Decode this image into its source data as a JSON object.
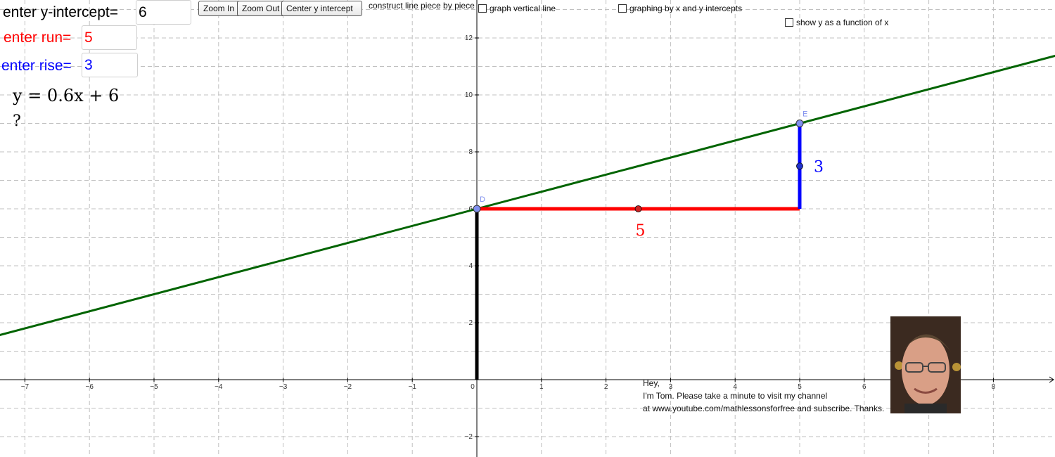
{
  "inputs": {
    "intercept": {
      "label": "enter y-intercept=",
      "value": "6",
      "color": "#000000"
    },
    "run": {
      "label": "enter run=",
      "value": "5",
      "color": "#ff0000"
    },
    "rise": {
      "label": "enter rise=",
      "value": "3",
      "color": "#0000ff"
    }
  },
  "formula": {
    "text": "y = 0.6x + 6",
    "question": "?"
  },
  "buttons": {
    "zoom_in": "Zoom In",
    "zoom_out": "Zoom Out",
    "center": "Center y intercept"
  },
  "checkboxes": {
    "piece": "construct line piece by piece",
    "vertical": "graph vertical line",
    "intercepts": "graphing by x and y intercepts",
    "function": "show y as a function of x"
  },
  "message": {
    "line1": "Hey,",
    "line2": "I'm Tom. Please take a minute to visit my channel",
    "line3": "at www.youtube.com/mathlessonsforfree and subscribe. Thanks."
  },
  "graph": {
    "x_ticks": [
      "−7",
      "−6",
      "−5",
      "−4",
      "−3",
      "−2",
      "−1",
      "0",
      "1",
      "2",
      "3",
      "4",
      "5",
      "6",
      "7",
      "8"
    ],
    "y_ticks": [
      "−2",
      "2",
      "4",
      "6",
      "8",
      "10",
      "12"
    ],
    "line": {
      "slope": 0.6,
      "intercept": 6,
      "color": "#006400"
    },
    "run": {
      "from": [
        0,
        6
      ],
      "to": [
        5,
        6
      ],
      "label": "5",
      "color": "#ff0000"
    },
    "rise": {
      "from": [
        5,
        6
      ],
      "to": [
        5,
        9
      ],
      "label": "3",
      "color": "#0000ff"
    },
    "intercept_segment": {
      "from": [
        0,
        0
      ],
      "to": [
        0,
        6
      ],
      "color": "#000000"
    },
    "points": {
      "D": {
        "label": "D",
        "x": 0,
        "y": 6
      },
      "E": {
        "label": "E",
        "x": 5,
        "y": 9
      }
    }
  },
  "colors": {
    "point": "#8090ee",
    "grid": "#c0c0c0"
  }
}
